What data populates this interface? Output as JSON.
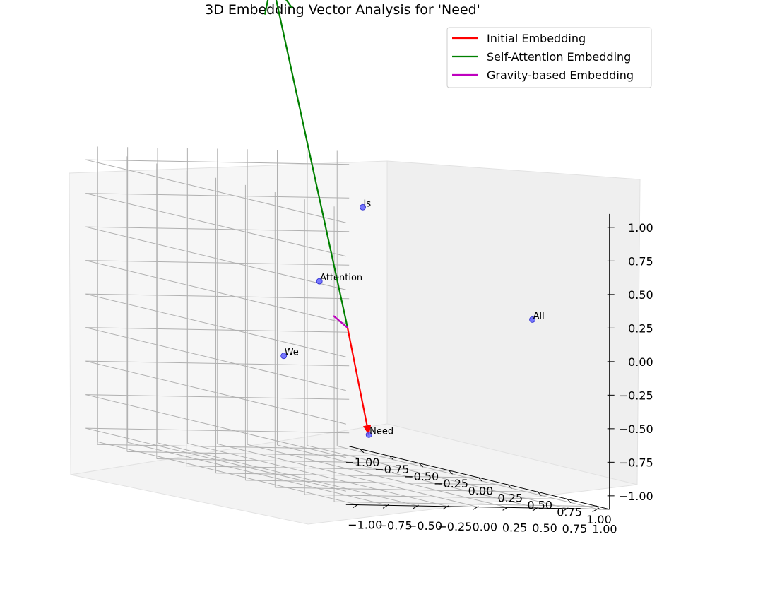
{
  "chart_data": {
    "type": "scatter",
    "projection": "3d",
    "title": "3D Embedding Vector Analysis for 'Need'",
    "xlabel": "",
    "ylabel": "",
    "zlabel": "",
    "xlim": [
      -1.0,
      1.0
    ],
    "ylim": [
      -1.0,
      1.0
    ],
    "zlim": [
      -1.0,
      1.0
    ],
    "x_ticks": [
      "−1.00",
      "−0.75",
      "−0.50",
      "−0.25",
      "0.00",
      "0.25",
      "0.50",
      "0.75",
      "1.00"
    ],
    "y_ticks": [
      "−1.00",
      "−0.75",
      "−0.50",
      "−0.25",
      "0.00",
      "0.25",
      "0.50",
      "0.75",
      "1.00"
    ],
    "z_ticks": [
      "1.00",
      "0.75",
      "0.50",
      "0.25",
      "0.00",
      "−0.25",
      "−0.50",
      "−0.75",
      "−1.00"
    ],
    "grid": true,
    "legend_position": "top-right",
    "point_color": "#4c4cff",
    "points": [
      {
        "label": "We",
        "x": -0.62,
        "y": -0.08,
        "z": -0.34
      },
      {
        "label": "Attention",
        "x": -0.42,
        "y": -0.18,
        "z": 0.26
      },
      {
        "label": "Is",
        "x": -0.61,
        "y": -0.73,
        "z": 0.78
      },
      {
        "label": "Need",
        "x": 0.17,
        "y": -0.01,
        "z": -0.76
      },
      {
        "label": "All",
        "x": 0.58,
        "y": -0.97,
        "z": 0.2
      }
    ],
    "vectors": [
      {
        "name": "Initial Embedding",
        "color": "#ff0000",
        "start": [
          0.0,
          0.0,
          0.0
        ],
        "end": [
          0.17,
          -0.01,
          -0.76
        ]
      },
      {
        "name": "Self-Attention Embedding",
        "color": "#008000",
        "start": [
          0.0,
          0.0,
          0.0
        ],
        "end": [
          -1.48,
          -0.83,
          2.29
        ]
      },
      {
        "name": "Gravity-based Embedding",
        "color": "#bf00bf",
        "start": [
          0.0,
          0.0,
          0.0
        ],
        "end": [
          -0.19,
          -0.07,
          0.05
        ]
      }
    ]
  }
}
